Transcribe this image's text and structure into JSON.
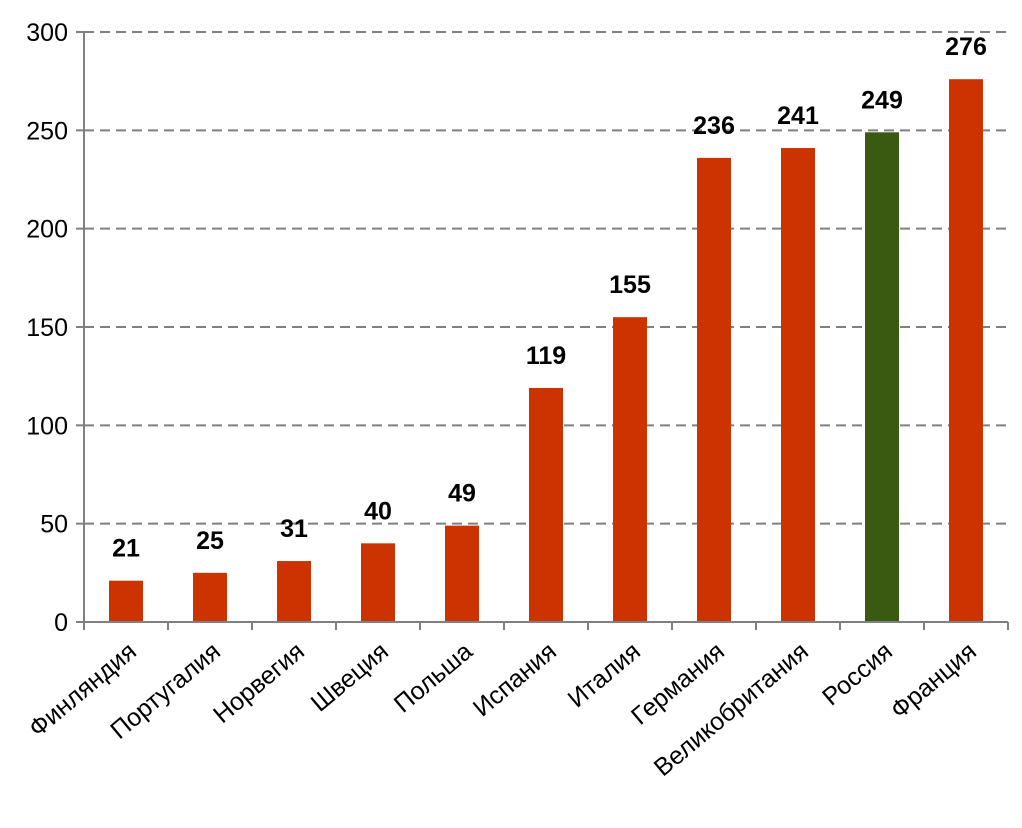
{
  "chart_data": {
    "type": "bar",
    "categories": [
      "Финляндия",
      "Португалия",
      "Норвегия",
      "Швеция",
      "Польша",
      "Испания",
      "Италия",
      "Германия",
      "Великобритания",
      "Россия",
      "Франция"
    ],
    "values": [
      21,
      25,
      31,
      40,
      49,
      119,
      155,
      236,
      241,
      249,
      276
    ],
    "colors": [
      "#cc3300",
      "#cc3300",
      "#cc3300",
      "#cc3300",
      "#cc3300",
      "#cc3300",
      "#cc3300",
      "#cc3300",
      "#cc3300",
      "#3a5a12",
      "#cc3300"
    ],
    "title": "",
    "xlabel": "",
    "ylabel": "",
    "ylim": [
      0,
      300
    ],
    "yticks": [
      "0",
      "50",
      "100",
      "150",
      "200",
      "250",
      "300"
    ],
    "grid": true,
    "data_labels": true
  }
}
